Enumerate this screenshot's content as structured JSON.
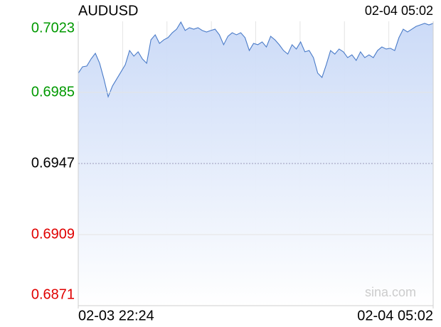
{
  "chart_data": {
    "type": "line",
    "title": "AUDUSD",
    "timestamp": "02-04 05:02",
    "watermark": "sina.com",
    "color": "#4a7bc8",
    "fill_color": "#c9d9f7",
    "up_color": "#009900",
    "down_color": "#e00000",
    "baseline": 0.6947,
    "ylim": [
      0.6871,
      0.7023
    ],
    "yticks": [
      0.7023,
      0.6985,
      0.6947,
      0.6909,
      0.6871
    ],
    "xlim": [
      0,
      83
    ],
    "xticks": [
      {
        "value": 0,
        "label": "02-03 22:24"
      },
      {
        "value": 83,
        "label": "02-04 05:02"
      }
    ],
    "grid": true,
    "values": [
      0.69953,
      0.69987,
      0.69991,
      0.70029,
      0.70059,
      0.70006,
      0.69922,
      0.69827,
      0.69884,
      0.69922,
      0.6996,
      0.69998,
      0.70074,
      0.70044,
      0.70067,
      0.70029,
      0.70006,
      0.70131,
      0.70158,
      0.70112,
      0.70131,
      0.70143,
      0.70169,
      0.70188,
      0.70226,
      0.70181,
      0.70196,
      0.70188,
      0.70196,
      0.70181,
      0.70173,
      0.70181,
      0.70188,
      0.70158,
      0.70105,
      0.7015,
      0.70169,
      0.70158,
      0.70169,
      0.70143,
      0.70074,
      0.70112,
      0.70105,
      0.7012,
      0.70093,
      0.7015,
      0.70131,
      0.70105,
      0.70074,
      0.70055,
      0.70105,
      0.70082,
      0.7012,
      0.70067,
      0.70074,
      0.70036,
      0.69953,
      0.6993,
      0.69998,
      0.70074,
      0.70055,
      0.70082,
      0.70067,
      0.70036,
      0.70051,
      0.70021,
      0.70067,
      0.70036,
      0.70051,
      0.70036,
      0.70074,
      0.70093,
      0.70082,
      0.70086,
      0.70074,
      0.70143,
      0.70188,
      0.70173,
      0.70188,
      0.70203,
      0.70211,
      0.70219,
      0.70211,
      0.70219
    ]
  }
}
